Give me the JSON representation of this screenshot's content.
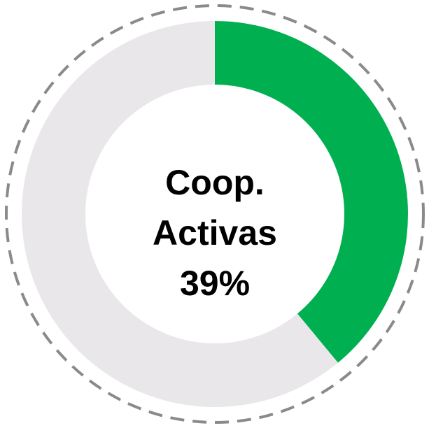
{
  "chart_data": {
    "type": "donut",
    "title": "Coop. Activas",
    "values": [
      39,
      61
    ],
    "value_labels": [
      "39%",
      null
    ],
    "colors": [
      "#00b050",
      "#e9e7ea"
    ]
  }
}
